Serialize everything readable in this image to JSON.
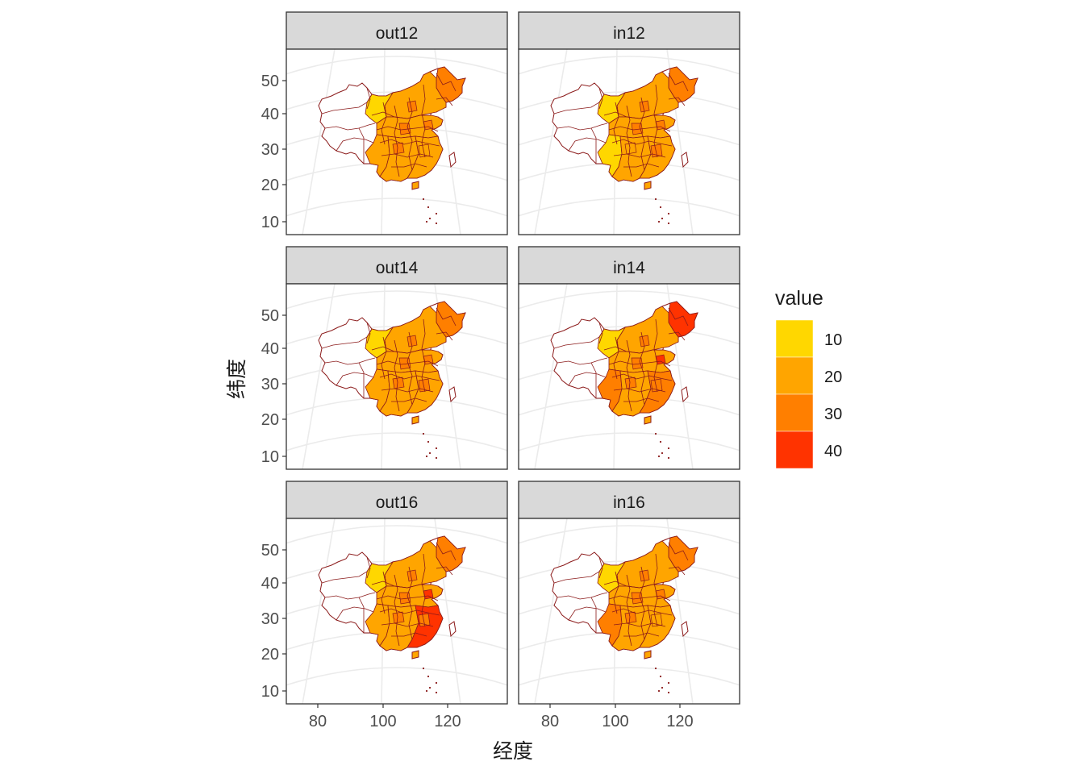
{
  "figure": {
    "xlabel": "经度",
    "ylabel": "纬度"
  },
  "chart_data": {
    "type": "choropleth-facets",
    "facets": [
      {
        "label": "out12",
        "choice": "out12"
      },
      {
        "label": "in12",
        "choice": "in12"
      },
      {
        "label": "out14",
        "choice": "out14"
      },
      {
        "label": "in14",
        "choice": "in14"
      },
      {
        "label": "out16",
        "choice": "out16"
      },
      {
        "label": "in16",
        "choice": "in16"
      }
    ],
    "x_ticks": [
      "80",
      "100",
      "120"
    ],
    "y_ticks": [
      "10",
      "20",
      "30",
      "40",
      "50"
    ],
    "legend": {
      "title": "value",
      "entries": [
        {
          "label": "10",
          "color": "#FFD700"
        },
        {
          "label": "20",
          "color": "#FFA500"
        },
        {
          "label": "30",
          "color": "#FF7F00"
        },
        {
          "label": "40",
          "color": "#FF3300"
        }
      ]
    },
    "colors": {
      "border": "#8B1A1A",
      "strip_fill": "#D9D9D9",
      "panel_border": "#333333",
      "graticule": "#EBEBEB",
      "no_data": "#FFFFFF"
    }
  }
}
